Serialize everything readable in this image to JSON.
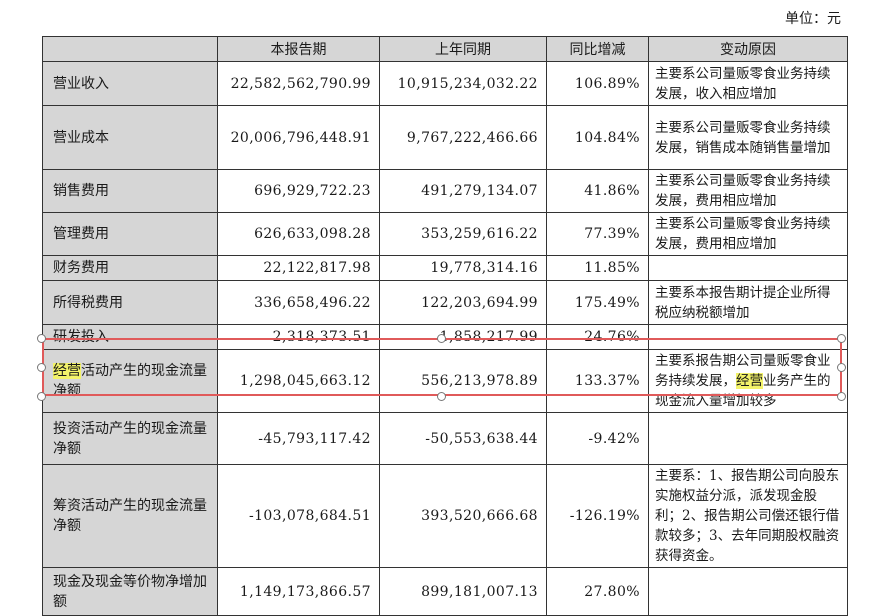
{
  "unit_label": "单位：元",
  "headers": [
    "",
    "本报告期",
    "上年同期",
    "同比增减",
    "变动原因"
  ],
  "rows": [
    {
      "item": "营业收入",
      "current": "22,582,562,790.99",
      "prior": "10,915,234,032.22",
      "change": "106.89%",
      "reason": "主要系公司量贩零食业务持续发展，收入相应增加"
    },
    {
      "item": "营业成本",
      "current": "20,006,796,448.91",
      "prior": "9,767,222,466.66",
      "change": "104.84%",
      "reason": "主要系公司量贩零食业务持续发展，销售成本随销售量增加"
    },
    {
      "item": "销售费用",
      "current": "696,929,722.23",
      "prior": "491,279,134.07",
      "change": "41.86%",
      "reason": "主要系公司量贩零食业务持续发展，费用相应增加"
    },
    {
      "item": "管理费用",
      "current": "626,633,098.28",
      "prior": "353,259,616.22",
      "change": "77.39%",
      "reason": "主要系公司量贩零食业务持续发展，费用相应增加"
    },
    {
      "item": "财务费用",
      "current": "22,122,817.98",
      "prior": "19,778,314.16",
      "change": "11.85%",
      "reason": ""
    },
    {
      "item": "所得税费用",
      "current": "336,658,496.22",
      "prior": "122,203,694.99",
      "change": "175.49%",
      "reason": "主要系本报告期计提企业所得税应纳税额增加"
    },
    {
      "item": "研发投入",
      "current": "2,318,373.51",
      "prior": "1,858,217.99",
      "change": "24.76%",
      "reason": ""
    },
    {
      "item_pre": "",
      "item_hl": "经营",
      "item_post": "活动产生的现金流量净额",
      "current": "1,298,045,663.12",
      "prior": "556,213,978.89",
      "change": "133.37%",
      "reason_pre": "主要系报告期公司量贩零食业务持续发展，",
      "reason_hl": "经营",
      "reason_post": "业务产生的现金流入量增加较多"
    },
    {
      "item": "投资活动产生的现金流量净额",
      "current": "-45,793,117.42",
      "prior": "-50,553,638.44",
      "change": "-9.42%",
      "reason": ""
    },
    {
      "item": "筹资活动产生的现金流量净额",
      "current": "-103,078,684.51",
      "prior": "393,520,666.68",
      "change": "-126.19%",
      "reason": "主要系：1、报告期公司向股东实施权益分派，派发现金股利；2、报告期公司偿还银行借款较多；3、去年同期股权融资获得资金。"
    },
    {
      "item": "现金及现金等价物净增加额",
      "current": "1,149,173,866.57",
      "prior": "899,181,007.13",
      "change": "27.80%",
      "reason": ""
    }
  ]
}
